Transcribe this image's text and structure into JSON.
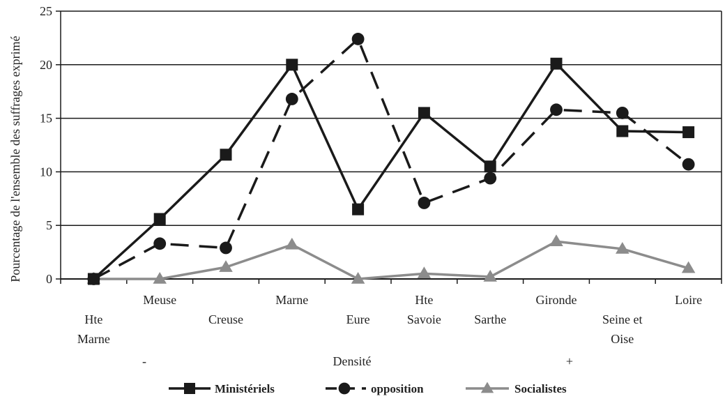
{
  "chart_data": {
    "type": "line",
    "categories": [
      [
        "Hte",
        "Marne"
      ],
      [
        "Meuse"
      ],
      [
        "Creuse"
      ],
      [
        "Marne"
      ],
      [
        "Eure"
      ],
      [
        "Hte",
        "Savoie"
      ],
      [
        "Sarthe"
      ],
      [
        "Gironde"
      ],
      [
        "Seine et",
        "Oise"
      ],
      [
        "Loire"
      ]
    ],
    "series": [
      {
        "name": "Ministériels",
        "values": [
          0,
          5.6,
          11.6,
          20.0,
          6.5,
          15.5,
          10.5,
          20.1,
          13.8,
          13.7
        ],
        "color": "#1a1a1a",
        "marker": "square",
        "dash": false
      },
      {
        "name": "opposition",
        "values": [
          0,
          3.3,
          2.9,
          16.8,
          22.4,
          7.1,
          9.4,
          15.8,
          15.5,
          10.7
        ],
        "color": "#1a1a1a",
        "marker": "circle",
        "dash": true
      },
      {
        "name": "Socialistes",
        "values": [
          0,
          0,
          1.1,
          3.2,
          0,
          0.5,
          0.2,
          3.5,
          2.8,
          1.0
        ],
        "color": "#8c8c8c",
        "marker": "triangle",
        "dash": false
      }
    ],
    "ylabel": "Pourcentage de l'ensemble des suffrages exprimé",
    "ylim": [
      0,
      25
    ],
    "yticks": [
      "0",
      "5",
      "10",
      "15",
      "20",
      "25"
    ],
    "x_axis_caption": {
      "left": "-",
      "center": "Densité",
      "right": "+"
    },
    "grid": true,
    "legend_position": "bottom"
  }
}
